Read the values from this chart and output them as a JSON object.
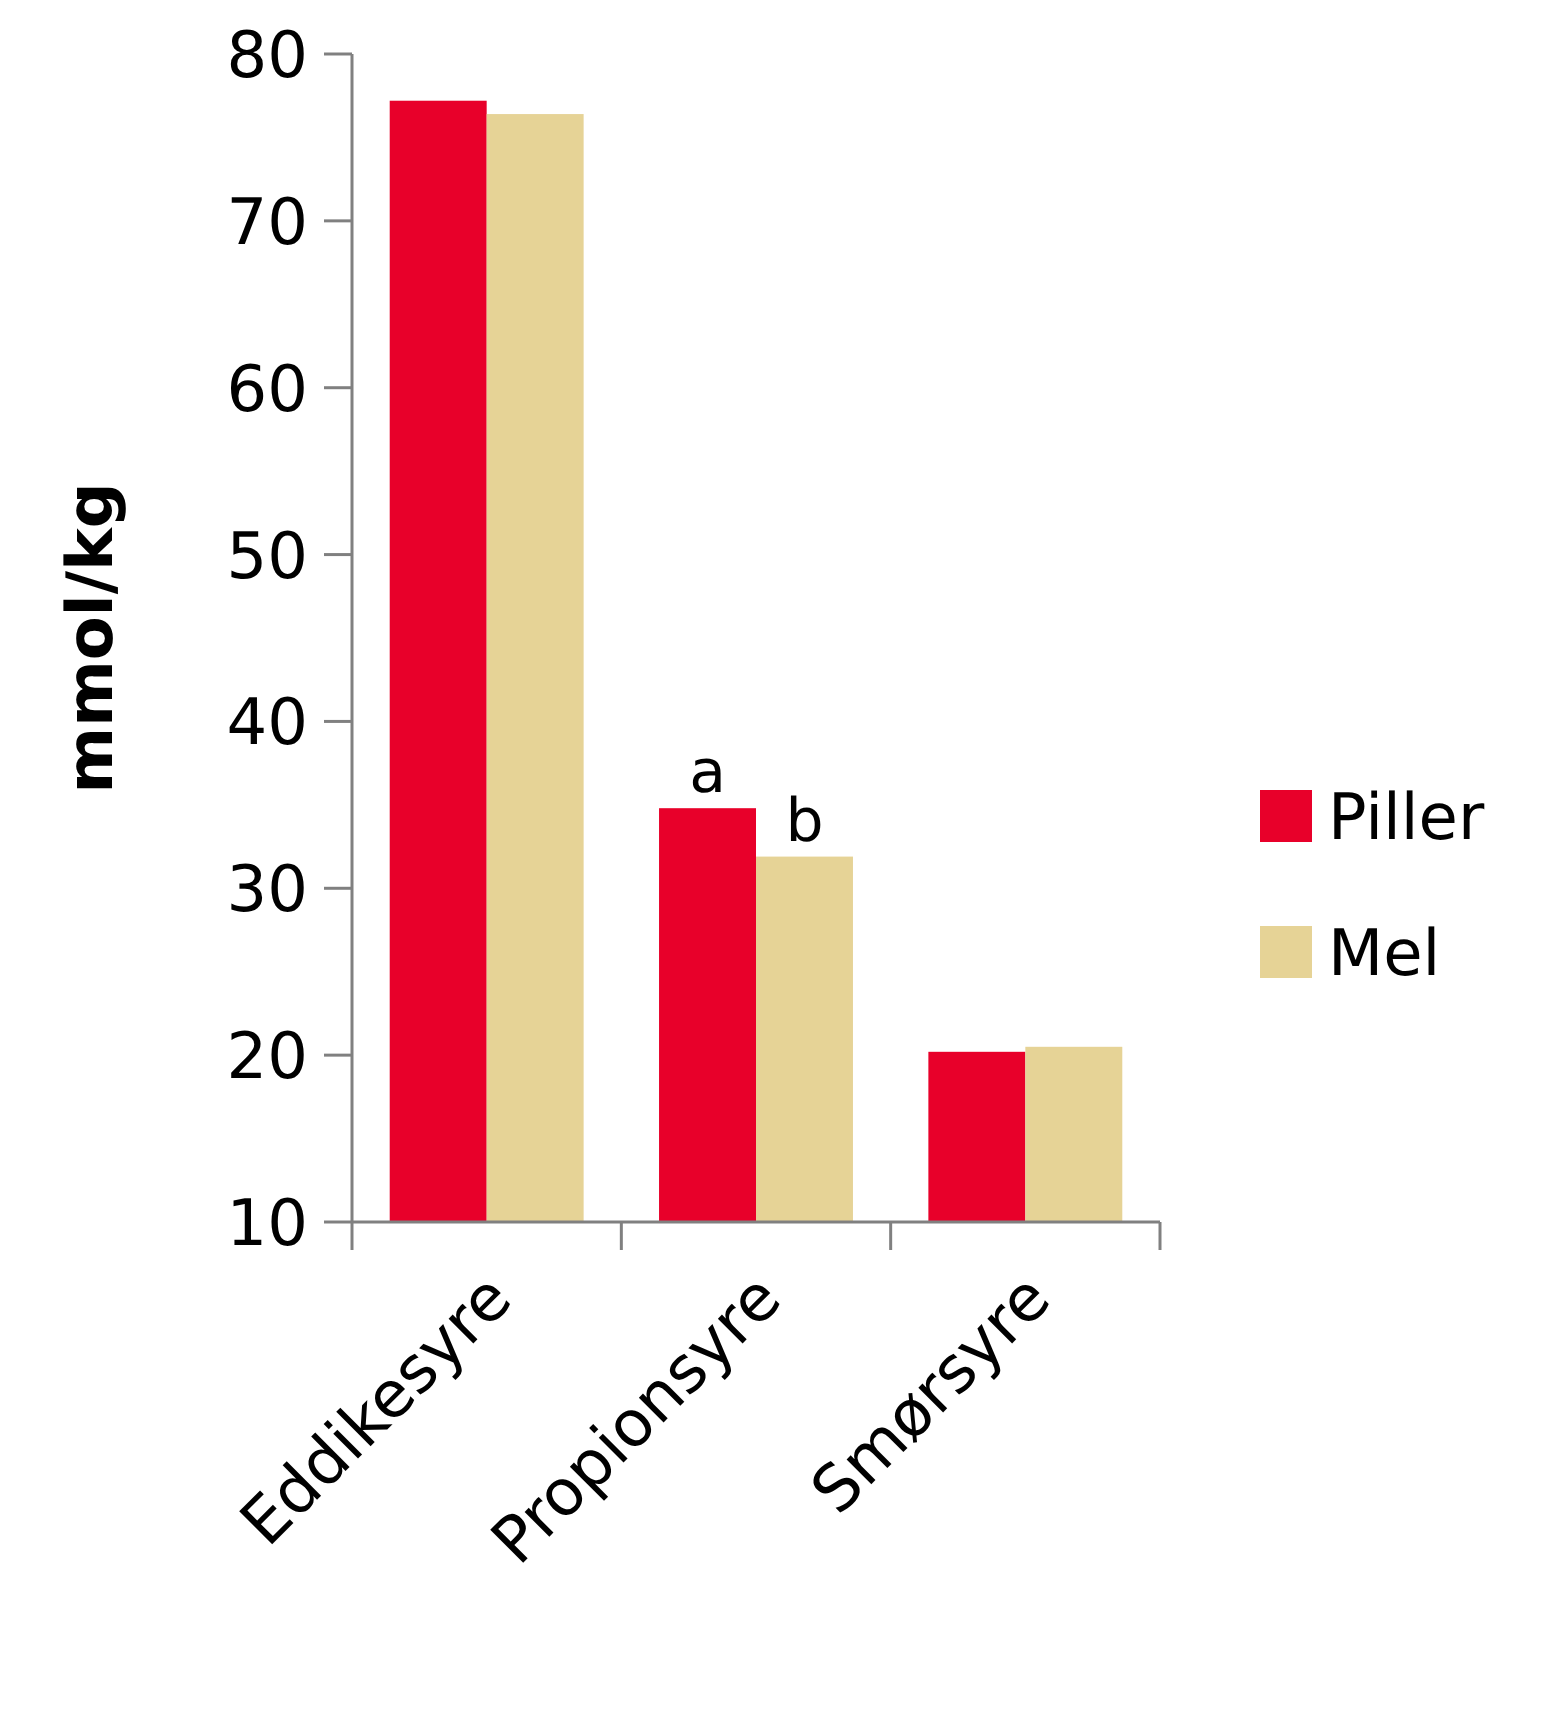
{
  "chart_data": {
    "type": "bar",
    "ylabel": "mmol/kg",
    "categories": [
      "Eddikesyre",
      "Propionsyre",
      "Smørsyre"
    ],
    "series": [
      {
        "name": "Piller",
        "color": "#e8002a",
        "values": [
          77.2,
          34.8,
          20.2
        ]
      },
      {
        "name": "Mel",
        "color": "#e6d396",
        "values": [
          76.4,
          31.9,
          20.5
        ]
      }
    ],
    "ylim": [
      10,
      80
    ],
    "yticks": [
      10,
      20,
      30,
      40,
      50,
      60,
      70,
      80
    ],
    "grid": false,
    "legend": "right",
    "annotations": [
      "a",
      "b"
    ]
  }
}
